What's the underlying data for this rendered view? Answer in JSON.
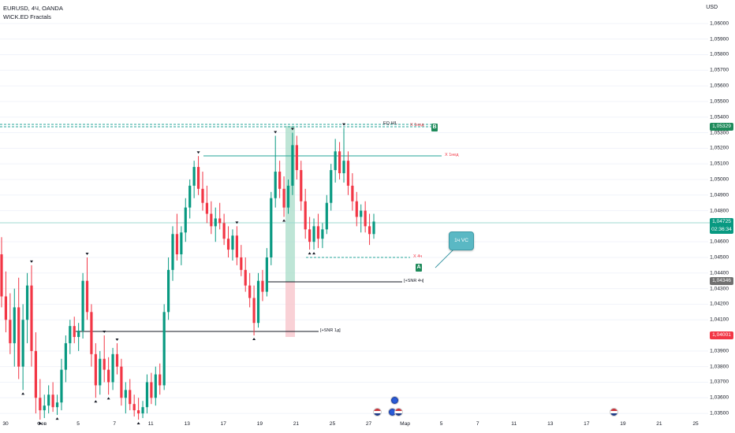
{
  "chart": {
    "title": "EURUSD, 4Ч, OANDA",
    "indicator": "WICK.ED Fractals",
    "axis_unit": "USD",
    "y_ticks": [
      "1,06000",
      "1,05900",
      "1,05800",
      "1,05700",
      "1,05600",
      "1,05500",
      "1,05400",
      "1,05300",
      "1,05200",
      "1,05100",
      "1,05000",
      "1,04900",
      "1,04800",
      "1,04600",
      "1,04500",
      "1,04400",
      "1,04300",
      "1,04200",
      "1,04100",
      "1,03900",
      "1,03800",
      "1,03700",
      "1,03600",
      "1,03500"
    ],
    "x_ticks": [
      "30",
      "Фев",
      "5",
      "7",
      "11",
      "13",
      "17",
      "19",
      "21",
      "25",
      "27",
      "Мар",
      "5",
      "7",
      "11",
      "13",
      "17",
      "19",
      "21",
      "25"
    ],
    "price_badges": [
      {
        "price": "1,05329",
        "color": "#1e8a5a"
      },
      {
        "price": "1,04725",
        "time": "02:36:34",
        "color": "#089981"
      },
      {
        "price": "1,04346",
        "color": "#707070"
      },
      {
        "price": "1,04001",
        "color": "#f23645"
      }
    ],
    "annotations": {
      "eqh": "EQ.H/L",
      "x_1ned_top": "X 1нед",
      "x_1ned": "X 1нед",
      "x_4h": "X 4ч",
      "snr_4h": "[+SNR 4ч]",
      "snr_1d": "[+SNR 1д]",
      "marker_b": "B",
      "marker_a": "A",
      "callout": "1ч VC"
    },
    "colors": {
      "up": "#089981",
      "down": "#f23645",
      "grid": "#f0f3fa",
      "level": "#26a69a"
    }
  },
  "chart_data": {
    "type": "candlestick",
    "symbol": "EURUSD",
    "timeframe": "4Ч",
    "source": "OANDA",
    "ylim": [
      1.0345,
      1.0608
    ],
    "current_price": 1.04725,
    "levels": {
      "eq_high": 1.0533,
      "weekly_high": 1.0515,
      "h4_low": 1.0448,
      "snr_4h": 1.0435,
      "snr_1d": 1.0405
    },
    "candles": [
      [
        1.0452,
        1.0463,
        1.0418,
        1.0425
      ],
      [
        1.0425,
        1.0441,
        1.0402,
        1.041
      ],
      [
        1.041,
        1.0427,
        1.0388,
        1.0395
      ],
      [
        1.0395,
        1.043,
        1.038,
        1.0418
      ],
      [
        1.0418,
        1.0437,
        1.0372,
        1.038
      ],
      [
        1.038,
        1.042,
        1.0365,
        1.041
      ],
      [
        1.041,
        1.044,
        1.0395,
        1.0432
      ],
      [
        1.0432,
        1.0445,
        1.038,
        1.039
      ],
      [
        1.039,
        1.0402,
        1.035,
        1.036
      ],
      [
        1.036,
        1.0372,
        1.0346,
        1.0352
      ],
      [
        1.0352,
        1.0362,
        1.0347,
        1.0355
      ],
      [
        1.0355,
        1.0368,
        1.035,
        1.0362
      ],
      [
        1.0362,
        1.037,
        1.0351,
        1.0354
      ],
      [
        1.0354,
        1.0362,
        1.0349,
        1.0357
      ],
      [
        1.0357,
        1.0385,
        1.0352,
        1.0378
      ],
      [
        1.0378,
        1.04,
        1.037,
        1.0395
      ],
      [
        1.0395,
        1.041,
        1.0388,
        1.0406
      ],
      [
        1.0406,
        1.0412,
        1.0395,
        1.0399
      ],
      [
        1.0399,
        1.0408,
        1.039,
        1.0403
      ],
      [
        1.0403,
        1.044,
        1.0398,
        1.0435
      ],
      [
        1.0435,
        1.045,
        1.041,
        1.0415
      ],
      [
        1.0415,
        1.042,
        1.038,
        1.0388
      ],
      [
        1.0388,
        1.0395,
        1.036,
        1.0368
      ],
      [
        1.0368,
        1.039,
        1.0362,
        1.0385
      ],
      [
        1.0385,
        1.04,
        1.037,
        1.0378
      ],
      [
        1.0378,
        1.0386,
        1.0362,
        1.037
      ],
      [
        1.037,
        1.0392,
        1.0365,
        1.0388
      ],
      [
        1.0388,
        1.0395,
        1.0375,
        1.038
      ],
      [
        1.038,
        1.0385,
        1.0355,
        1.036
      ],
      [
        1.036,
        1.037,
        1.035,
        1.0365
      ],
      [
        1.0365,
        1.0372,
        1.0352,
        1.0356
      ],
      [
        1.0356,
        1.0362,
        1.0348,
        1.0352
      ],
      [
        1.0352,
        1.036,
        1.0346,
        1.035
      ],
      [
        1.035,
        1.0358,
        1.0347,
        1.0354
      ],
      [
        1.0354,
        1.0375,
        1.035,
        1.037
      ],
      [
        1.037,
        1.0376,
        1.0356,
        1.036
      ],
      [
        1.036,
        1.038,
        1.0355,
        1.0375
      ],
      [
        1.0375,
        1.0382,
        1.0362,
        1.0368
      ],
      [
        1.0368,
        1.042,
        1.0365,
        1.0415
      ],
      [
        1.0415,
        1.045,
        1.041,
        1.0442
      ],
      [
        1.0442,
        1.047,
        1.0435,
        1.0465
      ],
      [
        1.0465,
        1.0478,
        1.0448,
        1.0452
      ],
      [
        1.0452,
        1.047,
        1.0445,
        1.0466
      ],
      [
        1.0466,
        1.0488,
        1.046,
        1.0482
      ],
      [
        1.0482,
        1.05,
        1.0475,
        1.0496
      ],
      [
        1.0496,
        1.0512,
        1.0488,
        1.0508
      ],
      [
        1.0508,
        1.0515,
        1.049,
        1.0494
      ],
      [
        1.0494,
        1.0505,
        1.048,
        1.0485
      ],
      [
        1.0485,
        1.0496,
        1.0472,
        1.0478
      ],
      [
        1.0478,
        1.0486,
        1.0465,
        1.047
      ],
      [
        1.047,
        1.0482,
        1.046,
        1.0475
      ],
      [
        1.0475,
        1.0485,
        1.0468,
        1.0472
      ],
      [
        1.0472,
        1.0478,
        1.0458,
        1.0462
      ],
      [
        1.0462,
        1.047,
        1.045,
        1.0455
      ],
      [
        1.0455,
        1.0468,
        1.0448,
        1.0464
      ],
      [
        1.0464,
        1.047,
        1.0445,
        1.045
      ],
      [
        1.045,
        1.0458,
        1.0438,
        1.0442
      ],
      [
        1.0442,
        1.045,
        1.0428,
        1.0432
      ],
      [
        1.0432,
        1.044,
        1.0418,
        1.0424
      ],
      [
        1.0424,
        1.0432,
        1.04,
        1.0408
      ],
      [
        1.0408,
        1.044,
        1.0405,
        1.0435
      ],
      [
        1.0435,
        1.0442,
        1.0422,
        1.0428
      ],
      [
        1.0428,
        1.0456,
        1.0425,
        1.045
      ],
      [
        1.045,
        1.0492,
        1.0445,
        1.0488
      ],
      [
        1.0488,
        1.0528,
        1.0482,
        1.0505
      ],
      [
        1.0505,
        1.0512,
        1.0488,
        1.0494
      ],
      [
        1.0494,
        1.0502,
        1.0476,
        1.0482
      ],
      [
        1.0482,
        1.05,
        1.0478,
        1.0496
      ],
      [
        1.0496,
        1.053,
        1.049,
        1.0522
      ],
      [
        1.0522,
        1.0528,
        1.05,
        1.0506
      ],
      [
        1.0506,
        1.0512,
        1.048,
        1.0486
      ],
      [
        1.0486,
        1.0494,
        1.0462,
        1.0468
      ],
      [
        1.0468,
        1.0476,
        1.0455,
        1.046
      ],
      [
        1.046,
        1.0475,
        1.0455,
        1.047
      ],
      [
        1.047,
        1.0478,
        1.0456,
        1.0462
      ],
      [
        1.0462,
        1.0472,
        1.0456,
        1.0468
      ],
      [
        1.0468,
        1.049,
        1.0465,
        1.0485
      ],
      [
        1.0485,
        1.051,
        1.048,
        1.0506
      ],
      [
        1.0506,
        1.0526,
        1.0498,
        1.0518
      ],
      [
        1.0518,
        1.0524,
        1.05,
        1.0504
      ],
      [
        1.0504,
        1.0533,
        1.0498,
        1.0512
      ],
      [
        1.0512,
        1.0518,
        1.049,
        1.0496
      ],
      [
        1.0496,
        1.0504,
        1.048,
        1.0486
      ],
      [
        1.0486,
        1.0492,
        1.047,
        1.0476
      ],
      [
        1.0476,
        1.0484,
        1.0466,
        1.048
      ],
      [
        1.048,
        1.0486,
        1.0466,
        1.047
      ],
      [
        1.047,
        1.0478,
        1.0458,
        1.0465
      ],
      [
        1.0465,
        1.0478,
        1.0462,
        1.0473
      ]
    ]
  }
}
